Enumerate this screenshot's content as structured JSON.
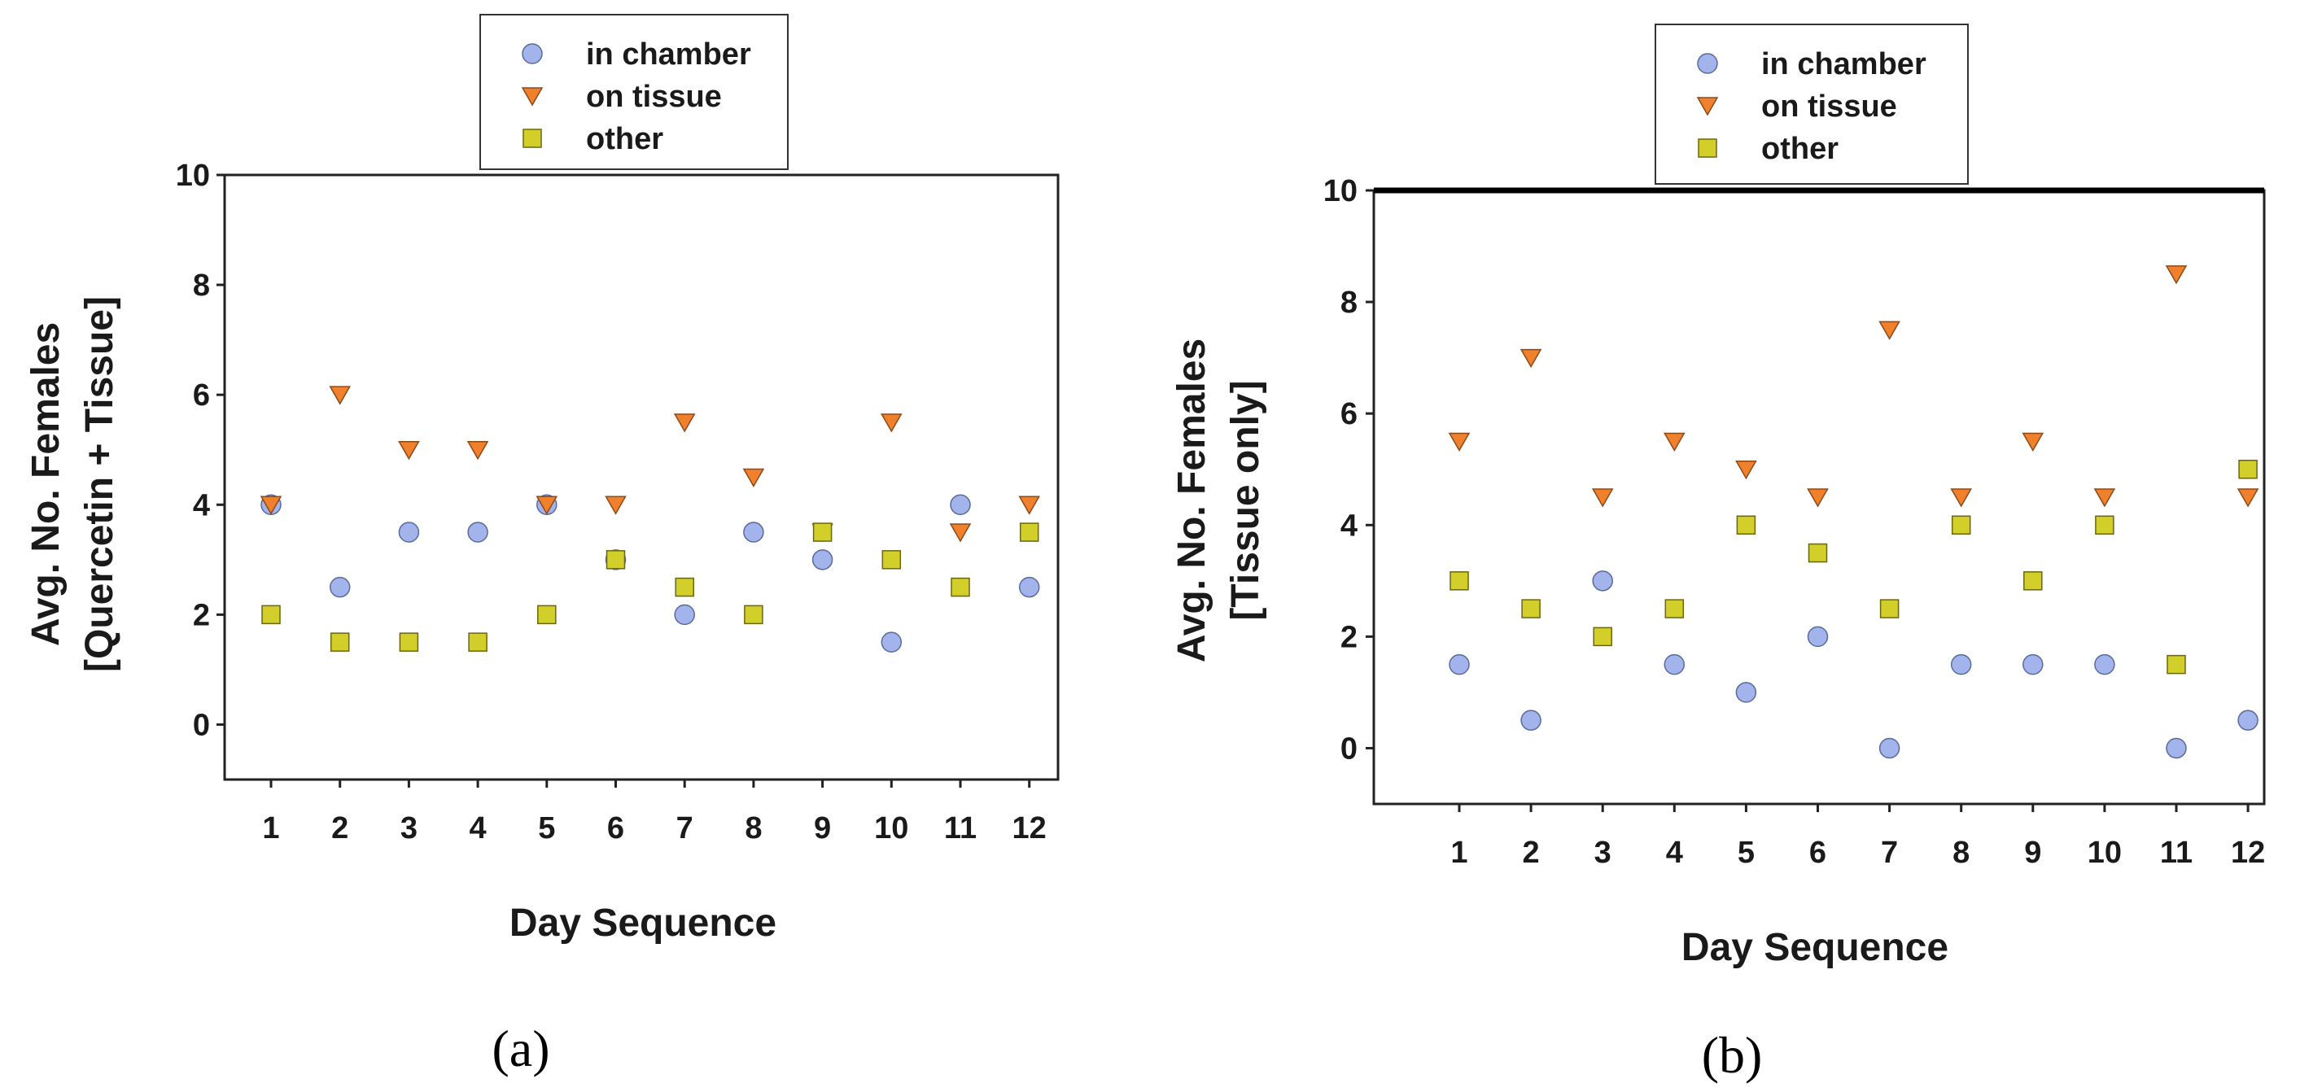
{
  "chart_data": [
    {
      "type": "scatter",
      "panel_label": "(a)",
      "title": "",
      "xlabel": "Day Sequence",
      "ylabel_lines": [
        "Avg. No. Females",
        "[Quercetin + Tissue]"
      ],
      "x": [
        1,
        2,
        3,
        4,
        5,
        6,
        7,
        8,
        9,
        10,
        11,
        12
      ],
      "x_ticks": [
        "1",
        "2",
        "3",
        "4",
        "5",
        "6",
        "7",
        "8",
        "9",
        "10",
        "11",
        "12"
      ],
      "y_ticks": [
        "0",
        "2",
        "4",
        "6",
        "8",
        "10"
      ],
      "ylim": [
        -1,
        10
      ],
      "legend_position": "top",
      "series": [
        {
          "name": "in chamber",
          "marker": "circle",
          "color": "#a3b4ec",
          "values": [
            4,
            2.5,
            3.5,
            3.5,
            4,
            3,
            2,
            3.5,
            3,
            1.5,
            4,
            2.5
          ]
        },
        {
          "name": "on tissue",
          "marker": "triangle-down",
          "color": "#f0802c",
          "values": [
            4,
            6,
            5,
            5,
            4,
            4,
            5.5,
            4.5,
            3.5,
            5.5,
            3.5,
            4
          ]
        },
        {
          "name": "other",
          "marker": "square",
          "color": "#d2cf2a",
          "values": [
            2,
            1.5,
            1.5,
            1.5,
            2,
            3,
            2.5,
            2,
            3.5,
            3,
            2.5,
            3.5
          ]
        }
      ]
    },
    {
      "type": "scatter",
      "panel_label": "(b)",
      "title": "",
      "xlabel": "Day Sequence",
      "ylabel_lines": [
        "Avg. No. Females",
        "[Tissue only]"
      ],
      "x": [
        1,
        2,
        3,
        4,
        5,
        6,
        7,
        8,
        9,
        10,
        11,
        12
      ],
      "x_ticks": [
        "1",
        "2",
        "3",
        "4",
        "5",
        "6",
        "7",
        "8",
        "9",
        "10",
        "11",
        "12"
      ],
      "y_ticks": [
        "0",
        "2",
        "4",
        "6",
        "8",
        "10"
      ],
      "ylim": [
        -1,
        10
      ],
      "legend_position": "top",
      "series": [
        {
          "name": "in chamber",
          "marker": "circle",
          "color": "#a3b4ec",
          "values": [
            1.5,
            0.5,
            3,
            1.5,
            1,
            2,
            0,
            1.5,
            1.5,
            1.5,
            0,
            0.5
          ]
        },
        {
          "name": "on tissue",
          "marker": "triangle-down",
          "color": "#f0802c",
          "values": [
            5.5,
            7,
            4.5,
            5.5,
            5,
            4.5,
            7.5,
            4.5,
            5.5,
            4.5,
            8.5,
            4.5
          ]
        },
        {
          "name": "other",
          "marker": "square",
          "color": "#d2cf2a",
          "values": [
            3,
            2.5,
            2,
            2.5,
            4,
            3.5,
            2.5,
            4,
            3,
            4,
            1.5,
            5
          ]
        }
      ]
    }
  ]
}
